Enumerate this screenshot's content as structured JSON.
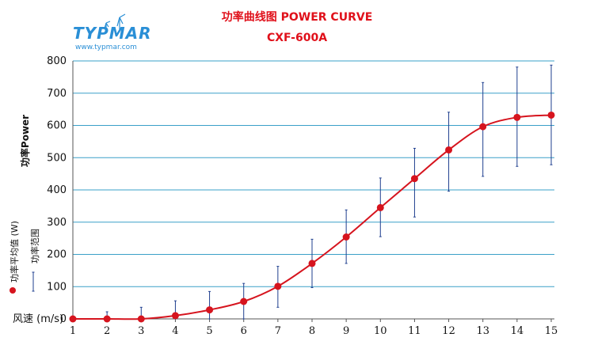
{
  "logo": {
    "brand": "TYPMAR",
    "url": "www.typmar.com"
  },
  "colors": {
    "title": "#e0101a",
    "series": "#d6141e",
    "range": "#1f3f8f",
    "grid": "#3aa0c8",
    "axis": "#555555"
  },
  "chart_data": {
    "type": "line",
    "title": "功率曲线图 POWER CURVE",
    "subtitle": "CXF-600A",
    "ylabel": "功率Power",
    "xlabel": "风速 (m/s)",
    "x": [
      1,
      2,
      3,
      4,
      5,
      6,
      7,
      8,
      9,
      10,
      11,
      12,
      13,
      14,
      15
    ],
    "ylim": [
      0,
      800
    ],
    "yticks": [
      0,
      100,
      200,
      300,
      400,
      500,
      600,
      700,
      800
    ],
    "grid": true,
    "series": [
      {
        "name": "功率平均值 (W)",
        "values": [
          0,
          0,
          0,
          10,
          28,
          54,
          101,
          172,
          254,
          345,
          435,
          524,
          596,
          625,
          632
        ]
      }
    ],
    "range": {
      "name": "功率范围",
      "low": [
        null,
        0,
        0,
        0,
        0,
        0,
        36,
        97,
        172,
        255,
        316,
        396,
        442,
        473,
        478
      ],
      "high": [
        null,
        22,
        36,
        56,
        85,
        110,
        163,
        247,
        338,
        437,
        529,
        641,
        733,
        781,
        787
      ]
    }
  }
}
